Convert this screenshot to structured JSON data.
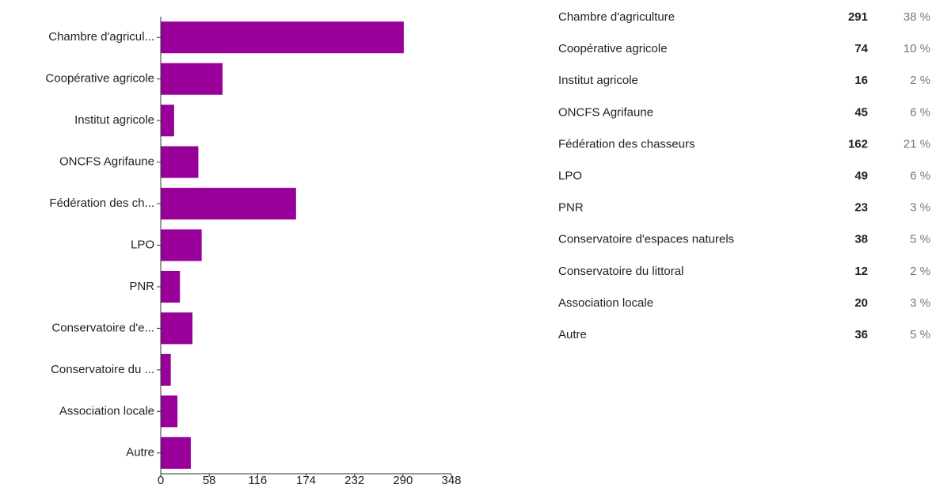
{
  "chart_data": {
    "type": "bar",
    "orientation": "horizontal",
    "categories": [
      "Chambre d'agricul...",
      "Coopérative agricole",
      "Institut agricole",
      "ONCFS Agrifaune",
      "Fédération des ch...",
      "LPO",
      "PNR",
      "Conservatoire d'e...",
      "Conservatoire du ...",
      "Association locale",
      "Autre"
    ],
    "values": [
      291,
      74,
      16,
      45,
      162,
      49,
      23,
      38,
      12,
      20,
      36
    ],
    "color": "#990099",
    "xlim": [
      0,
      348
    ],
    "xticks": [
      0,
      58,
      116,
      174,
      232,
      290,
      348
    ]
  },
  "table": {
    "rows": [
      {
        "label": "Chambre d'agriculture",
        "percent": "38 %"
      },
      {
        "label": "Coopérative agricole",
        "percent": "10 %"
      },
      {
        "label": "Institut agricole",
        "percent": "2 %"
      },
      {
        "label": "ONCFS Agrifaune",
        "percent": "6 %"
      },
      {
        "label": "Fédération des chasseurs",
        "percent": "21 %"
      },
      {
        "label": "LPO",
        "percent": "6 %"
      },
      {
        "label": "PNR",
        "percent": "3 %"
      },
      {
        "label": "Conservatoire d'espaces naturels",
        "percent": "5 %"
      },
      {
        "label": "Conservatoire du littoral",
        "percent": "2 %"
      },
      {
        "label": "Association locale",
        "percent": "3 %"
      },
      {
        "label": "Autre",
        "percent": "5 %"
      }
    ]
  }
}
